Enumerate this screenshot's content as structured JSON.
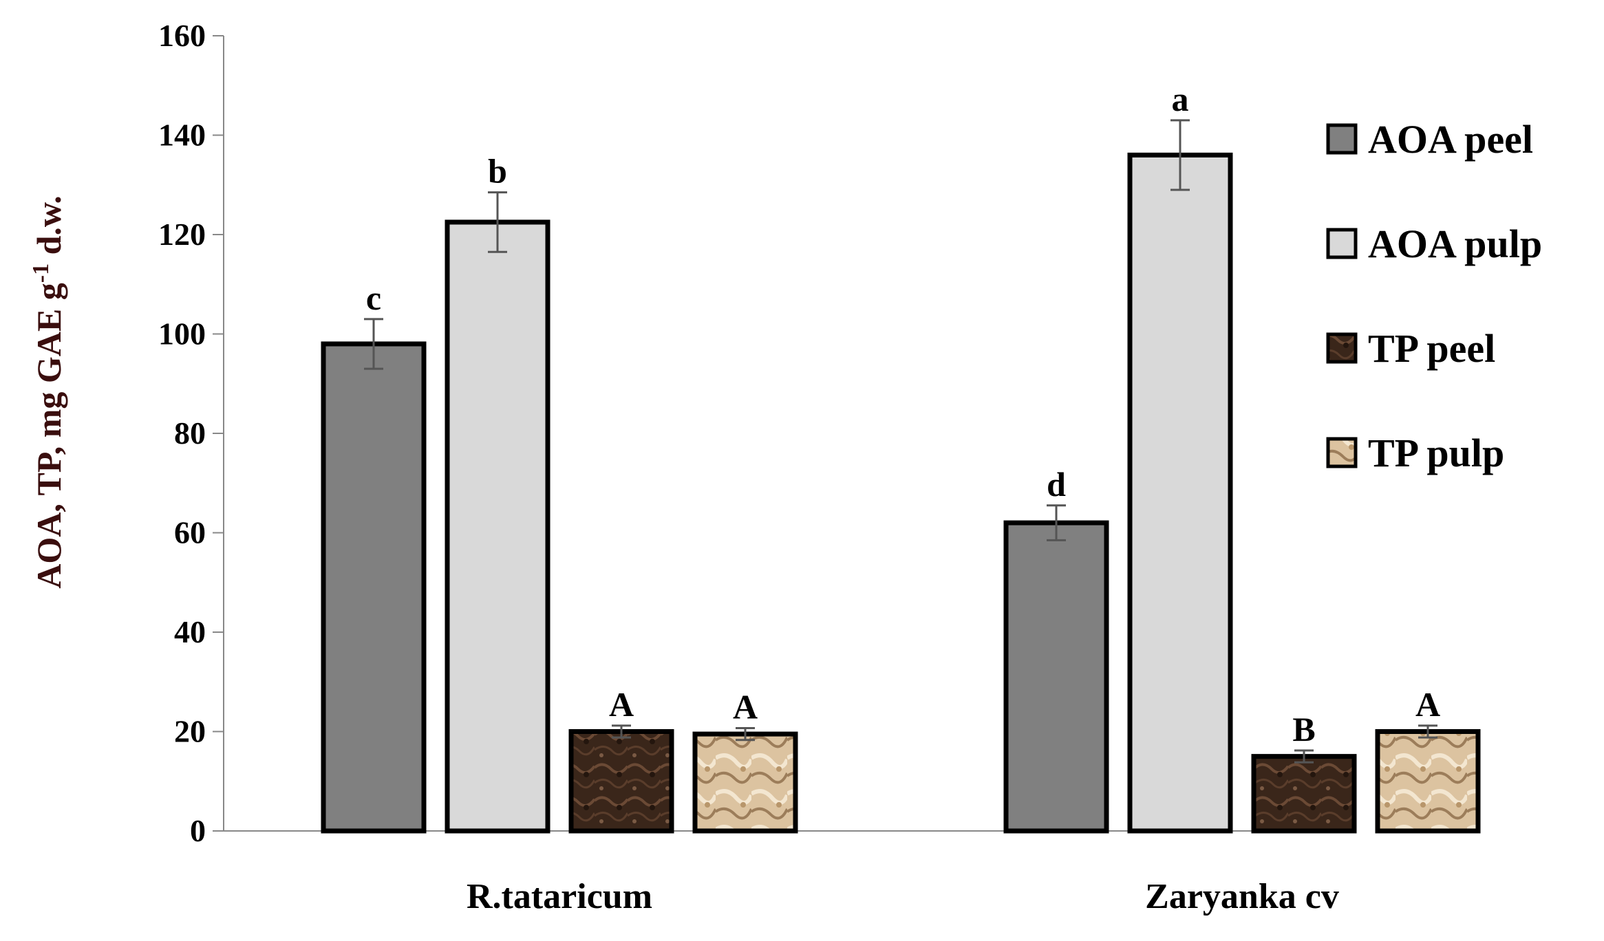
{
  "chart_data": {
    "type": "bar",
    "title": "",
    "xlabel": "",
    "ylabel": "AOA, TP, mg GAE g",
    "ylabel_superscript": "-1",
    "ylabel_suffix": " d.w.",
    "ylim": [
      0,
      160
    ],
    "yticks": [
      0,
      20,
      40,
      60,
      80,
      100,
      120,
      140,
      160
    ],
    "grid": false,
    "legend_position": "right",
    "categories": [
      "R.tataricum",
      "Zaryanka cv"
    ],
    "series": [
      {
        "name": "AOA peel",
        "values": [
          98,
          62
        ],
        "errors": [
          5,
          3.5
        ],
        "letters": [
          "c",
          "d"
        ],
        "color": "#808080",
        "pattern": "solid"
      },
      {
        "name": "AOA pulp",
        "values": [
          122.5,
          136
        ],
        "errors": [
          6,
          7
        ],
        "letters": [
          "b",
          "a"
        ],
        "color": "#d9d9d9",
        "pattern": "solid"
      },
      {
        "name": "TP peel",
        "values": [
          20,
          15
        ],
        "errors": [
          1.2,
          1.2
        ],
        "letters": [
          "A",
          "B"
        ],
        "color": "#3d2a1d",
        "pattern": "dark-texture"
      },
      {
        "name": "TP pulp",
        "values": [
          19.5,
          20
        ],
        "errors": [
          1.2,
          1.2
        ],
        "letters": [
          "A",
          "A"
        ],
        "color": "#d2b48c",
        "pattern": "light-texture"
      }
    ]
  }
}
